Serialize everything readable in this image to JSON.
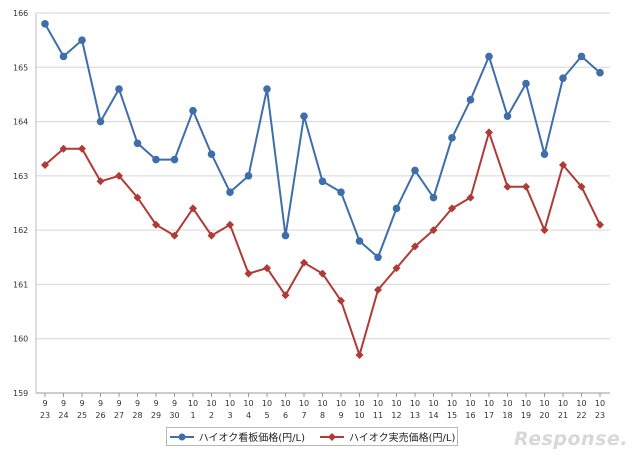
{
  "chart_data": {
    "type": "line",
    "title": "",
    "xlabel": "",
    "ylabel": "",
    "ylim": [
      159,
      166
    ],
    "yticks": [
      "159",
      "160",
      "161",
      "162",
      "163",
      "164",
      "165",
      "166"
    ],
    "categories": [
      [
        "9",
        "23"
      ],
      [
        "9",
        "24"
      ],
      [
        "9",
        "25"
      ],
      [
        "9",
        "26"
      ],
      [
        "9",
        "27"
      ],
      [
        "9",
        "28"
      ],
      [
        "9",
        "29"
      ],
      [
        "9",
        "30"
      ],
      [
        "10",
        "1"
      ],
      [
        "10",
        "2"
      ],
      [
        "10",
        "3"
      ],
      [
        "10",
        "4"
      ],
      [
        "10",
        "5"
      ],
      [
        "10",
        "6"
      ],
      [
        "10",
        "7"
      ],
      [
        "10",
        "8"
      ],
      [
        "10",
        "9"
      ],
      [
        "10",
        "10"
      ],
      [
        "10",
        "11"
      ],
      [
        "10",
        "12"
      ],
      [
        "10",
        "13"
      ],
      [
        "10",
        "14"
      ],
      [
        "10",
        "15"
      ],
      [
        "10",
        "16"
      ],
      [
        "10",
        "17"
      ],
      [
        "10",
        "18"
      ],
      [
        "10",
        "19"
      ],
      [
        "10",
        "20"
      ],
      [
        "10",
        "21"
      ],
      [
        "10",
        "22"
      ],
      [
        "10",
        "23"
      ]
    ],
    "grid": true,
    "legend_position": "bottom",
    "series": [
      {
        "name": "ハイオク看板価格(円/L)",
        "color": "#3f6faa",
        "marker": "circle",
        "values": [
          165.8,
          165.2,
          165.5,
          164.0,
          164.6,
          163.6,
          163.3,
          163.3,
          164.2,
          163.4,
          162.7,
          163.0,
          164.6,
          161.9,
          164.1,
          162.9,
          162.7,
          161.8,
          161.5,
          162.4,
          163.1,
          162.6,
          163.7,
          164.4,
          165.2,
          164.1,
          164.7,
          163.4,
          164.8,
          165.2,
          164.9
        ]
      },
      {
        "name": "ハイオク実売価格(円/L)",
        "color": "#b03a36",
        "marker": "diamond",
        "values": [
          163.2,
          163.5,
          163.5,
          162.9,
          163.0,
          162.6,
          162.1,
          161.9,
          162.4,
          161.9,
          162.1,
          161.2,
          161.3,
          160.8,
          161.4,
          161.2,
          160.7,
          159.7,
          160.9,
          161.3,
          161.7,
          162.0,
          162.4,
          162.6,
          163.8,
          162.8,
          162.8,
          162.0,
          163.2,
          162.8,
          162.1
        ]
      }
    ]
  },
  "watermark": "Response."
}
